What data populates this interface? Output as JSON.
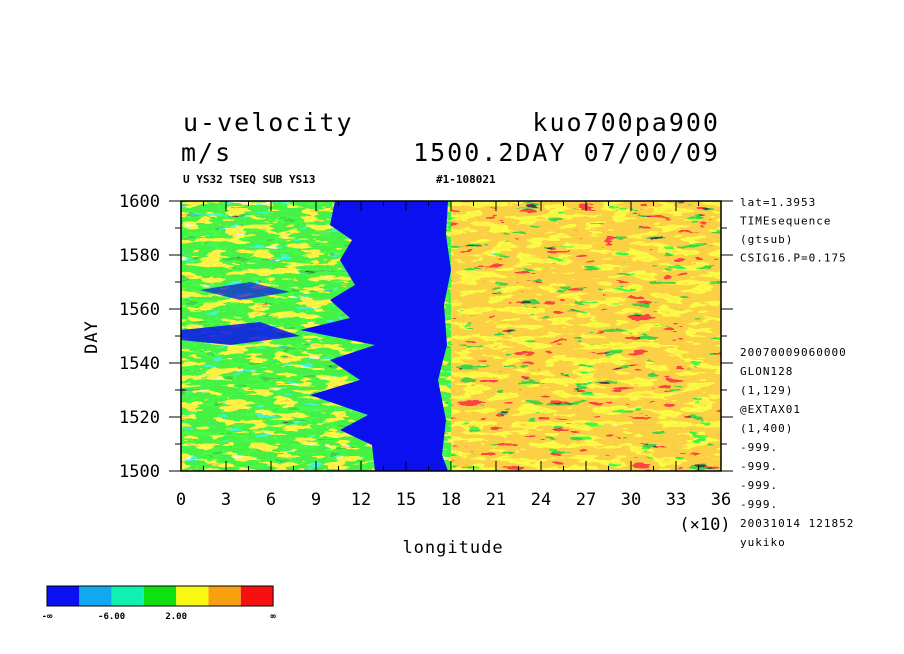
{
  "header": {
    "title_left": "u-velocity",
    "title_right": "kuo700pa900",
    "units": "m/s",
    "time_label": "1500.2DAY 07/00/09",
    "sub_left": "U YS32 TSEQ SUB YS13",
    "sub_right": "#1-108021"
  },
  "side_info": {
    "top": [
      "lat=1.3953",
      "TIMEsequence",
      "(gtsub)",
      "CSIG16.P=0.175"
    ],
    "bottom": [
      "20070009060000",
      "GLON128",
      "(1,129)",
      "@EXTAX01",
      "(1,400)",
      "-999.",
      "-999.",
      "-999.",
      "-999.",
      "20031014 121852",
      "yukiko"
    ]
  },
  "colorbar": {
    "colors": [
      "#0a10f0",
      "#10a8f0",
      "#10f0b0",
      "#10e010",
      "#f8f810",
      "#f8a010",
      "#f81010"
    ],
    "labels": [
      "-∞",
      "-6.00",
      "2.00",
      "∞"
    ]
  },
  "chart_data": {
    "type": "heatmap",
    "xlabel": "longitude",
    "ylabel": "DAY",
    "x_multiplier": "(×10)",
    "xlim": [
      0,
      36
    ],
    "ylim": [
      1500,
      1600
    ],
    "x_ticks": [
      "0",
      "3",
      "6",
      "9",
      "12",
      "15",
      "18",
      "21",
      "24",
      "27",
      "30",
      "33",
      "36"
    ],
    "y_ticks": [
      "1500",
      "1520",
      "1540",
      "1560",
      "1580",
      "1600"
    ]
  }
}
